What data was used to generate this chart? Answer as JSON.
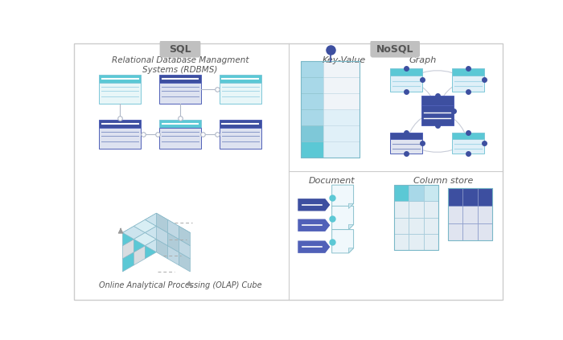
{
  "bg_color": "#ffffff",
  "divider_color": "#cccccc",
  "sql_label": "SQL",
  "nosql_label": "NoSQL",
  "rdbms_title": "Relational Database Managment\nSystems (RDBMS)",
  "olap_title": "Online Analytical Processing (OLAP) Cube",
  "kv_title": "Key-Value",
  "graph_title": "Graph",
  "doc_title": "Document",
  "col_title": "Column store",
  "teal_bright": "#5bc8d5",
  "teal_mid": "#7ec8d8",
  "teal_light": "#a8d8e8",
  "teal_pale": "#c8e8f0",
  "blue_dark": "#3d4fa0",
  "blue_mid": "#5060b8",
  "blue_light": "#8898c8",
  "blue_pale": "#c0c8e0",
  "gray_light": "#d8dce0",
  "gray_pale": "#e8eaec",
  "connector_color": "#b0b8c8",
  "title_color": "#555555",
  "badge_fc": "#c0c0c0",
  "badge_tc": "#555555"
}
